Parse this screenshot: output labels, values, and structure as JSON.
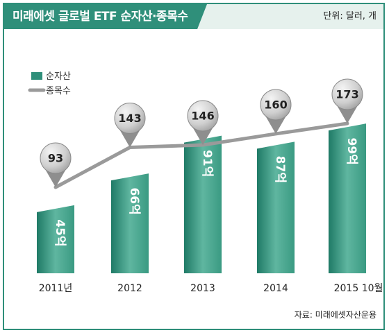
{
  "header": {
    "title": "미래에셋 글로벌 ETF 순자산·종목수",
    "unit": "단위: 달러, 개"
  },
  "source": "자료: 미래에셋자산운용",
  "colors": {
    "accent": "#2f8f7a",
    "header_bg": "#e6f1ed",
    "line": "#9a9a9a"
  },
  "chart_data": {
    "type": "bar",
    "categories": [
      "2011년",
      "2012",
      "2013",
      "2014",
      "2015  10월"
    ],
    "series": [
      {
        "name": "순자산",
        "type": "bar",
        "values": [
          45,
          66,
          91,
          87,
          99
        ],
        "labels": [
          "45억",
          "66억",
          "91억",
          "87억",
          "99억"
        ]
      },
      {
        "name": "종목수",
        "type": "line",
        "values": [
          93,
          143,
          146,
          160,
          173
        ],
        "labels": [
          "93",
          "143",
          "146",
          "160",
          "173"
        ]
      }
    ],
    "legend": [
      "순자산",
      "종목수"
    ],
    "legend_position": "top-left"
  }
}
